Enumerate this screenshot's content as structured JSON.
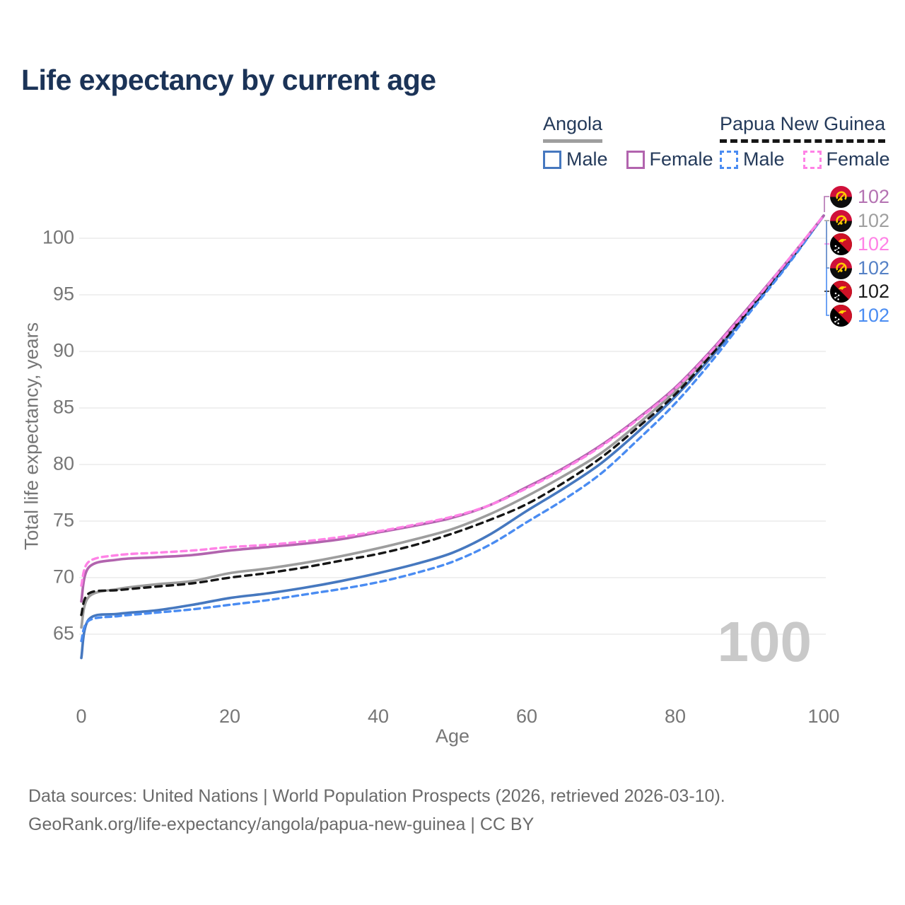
{
  "title": "Life expectancy by current age",
  "legend": {
    "groups": [
      {
        "label": "Angola",
        "underline": {
          "style": "solid",
          "color": "#9e9e9e"
        },
        "items": [
          {
            "label": "Male",
            "color": "#4678bf",
            "dash": false
          },
          {
            "label": "Female",
            "color": "#b264ae",
            "dash": false
          }
        ]
      },
      {
        "label": "Papua New Guinea",
        "underline": {
          "style": "dashed",
          "color": "#161616"
        },
        "items": [
          {
            "label": "Male",
            "color": "#4a8cf2",
            "dash": true
          },
          {
            "label": "Female",
            "color": "#ff82e6",
            "dash": true
          }
        ]
      }
    ]
  },
  "watermark_age_counter": "100",
  "end_labels": [
    {
      "value": "102",
      "flag": "angola",
      "color": "#b472b2"
    },
    {
      "value": "102",
      "flag": "angola",
      "color": "#9f9f9f"
    },
    {
      "value": "102",
      "flag": "png",
      "color": "#ff82e6"
    },
    {
      "value": "102",
      "flag": "angola",
      "color": "#5581c6"
    },
    {
      "value": "102",
      "flag": "png",
      "color": "#1c1c1c"
    },
    {
      "value": "102",
      "flag": "png",
      "color": "#4a8cf2"
    }
  ],
  "footer": {
    "line1": "Data sources: United Nations | World Population Prospects (2026, retrieved 2026-03-10).",
    "line2": "GeoRank.org/life-expectancy/angola/papua-new-guinea | CC BY"
  },
  "chart_data": {
    "type": "line",
    "title": "Life expectancy by current age",
    "xlabel": "Age",
    "ylabel": "Total life expectancy, years",
    "xlim": [
      0,
      100
    ],
    "ylim": [
      62,
      103
    ],
    "xticks": [
      0,
      20,
      40,
      60,
      80,
      100
    ],
    "yticks": [
      65,
      70,
      75,
      80,
      85,
      90,
      95,
      100
    ],
    "grid": "horizontal",
    "legend_position": "top-right",
    "x": [
      0,
      1,
      5,
      10,
      15,
      20,
      25,
      30,
      35,
      40,
      45,
      50,
      55,
      60,
      65,
      70,
      75,
      80,
      85,
      90,
      95,
      100
    ],
    "series": [
      {
        "name": "Angola Total",
        "country": "Angola",
        "sex": "Both",
        "color": "#9d9d9d",
        "dash": null,
        "width": 3.6,
        "values": [
          65.6,
          68.3,
          69.0,
          69.4,
          69.7,
          70.4,
          70.8,
          71.3,
          71.9,
          72.6,
          73.4,
          74.3,
          75.6,
          77.2,
          79.0,
          81.0,
          83.6,
          86.5,
          90.0,
          93.8,
          97.8,
          102
        ]
      },
      {
        "name": "Angola Male",
        "country": "Angola",
        "sex": "Male",
        "color": "#4678bf",
        "dash": null,
        "width": 3.6,
        "values": [
          62.9,
          66.3,
          66.8,
          67.1,
          67.6,
          68.2,
          68.6,
          69.1,
          69.7,
          70.4,
          71.2,
          72.2,
          73.8,
          75.9,
          77.9,
          80.1,
          82.9,
          86.0,
          89.6,
          93.6,
          97.6,
          102
        ]
      },
      {
        "name": "Papua New Guinea Total",
        "country": "Papua New Guinea",
        "sex": "Both",
        "color": "#161616",
        "dash": "9 7",
        "width": 3.4,
        "values": [
          66.7,
          68.6,
          68.9,
          69.2,
          69.5,
          70.0,
          70.4,
          70.9,
          71.5,
          72.1,
          72.9,
          73.9,
          75.1,
          76.5,
          78.4,
          80.6,
          83.3,
          86.2,
          89.8,
          93.7,
          97.7,
          102
        ]
      },
      {
        "name": "Papua New Guinea Male",
        "country": "Papua New Guinea",
        "sex": "Male",
        "color": "#4a8cf2",
        "dash": "8 6",
        "width": 3.4,
        "values": [
          64.4,
          66.2,
          66.6,
          66.9,
          67.2,
          67.6,
          68.0,
          68.5,
          69.0,
          69.6,
          70.4,
          71.4,
          72.9,
          74.9,
          76.9,
          79.2,
          82.2,
          85.4,
          89.2,
          93.4,
          97.5,
          102
        ]
      },
      {
        "name": "Angola Female",
        "country": "Angola",
        "sex": "Female",
        "color": "#b264ae",
        "dash": null,
        "width": 3.6,
        "values": [
          67.9,
          70.9,
          71.6,
          71.8,
          72.0,
          72.4,
          72.7,
          73.0,
          73.4,
          74.0,
          74.6,
          75.3,
          76.4,
          78.0,
          79.7,
          81.7,
          84.1,
          86.8,
          90.2,
          94.0,
          97.9,
          102
        ]
      },
      {
        "name": "Papua New Guinea Female",
        "country": "Papua New Guinea",
        "sex": "Female",
        "color": "#ff82e6",
        "dash": "8 6",
        "width": 3.4,
        "values": [
          69.3,
          71.4,
          72.0,
          72.2,
          72.4,
          72.7,
          72.9,
          73.2,
          73.6,
          74.1,
          74.7,
          75.4,
          76.4,
          77.9,
          79.6,
          81.6,
          84.0,
          86.7,
          90.1,
          93.9,
          97.9,
          102
        ]
      }
    ]
  }
}
